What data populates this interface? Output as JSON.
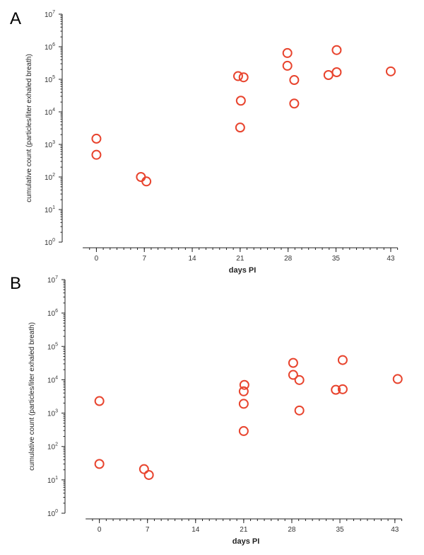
{
  "chart_data": [
    {
      "panel": "A",
      "type": "scatter",
      "xlabel": "days PI",
      "ylabel": "cumulative count (particles/liter exhaled breath)",
      "x_ticks": [
        0,
        7,
        14,
        21,
        28,
        35,
        43
      ],
      "y_scale": "log",
      "ylim": [
        1,
        10000000
      ],
      "y_ticks": [
        "10^0",
        "10^1",
        "10^2",
        "10^3",
        "10^4",
        "10^5",
        "10^6",
        "10^7"
      ],
      "marker": "open-circle",
      "color": "#e8442e",
      "points": [
        {
          "x": 0,
          "y": 1500
        },
        {
          "x": 0,
          "y": 480
        },
        {
          "x": 6.5,
          "y": 100
        },
        {
          "x": 7.3,
          "y": 73
        },
        {
          "x": 20.7,
          "y": 125000
        },
        {
          "x": 21.5,
          "y": 115000
        },
        {
          "x": 21.1,
          "y": 22000
        },
        {
          "x": 21.0,
          "y": 3300
        },
        {
          "x": 27.9,
          "y": 640000
        },
        {
          "x": 27.9,
          "y": 260000
        },
        {
          "x": 28.9,
          "y": 95000
        },
        {
          "x": 28.9,
          "y": 18000
        },
        {
          "x": 33.9,
          "y": 135000
        },
        {
          "x": 35.1,
          "y": 790000
        },
        {
          "x": 35.1,
          "y": 165000
        },
        {
          "x": 43,
          "y": 175000
        }
      ]
    },
    {
      "panel": "B",
      "type": "scatter",
      "xlabel": "days PI",
      "ylabel": "cumulative count (particles/liter exhaled breath)",
      "x_ticks": [
        0,
        7,
        14,
        21,
        28,
        35,
        43
      ],
      "y_scale": "log",
      "ylim": [
        1,
        10000000
      ],
      "y_ticks": [
        "10^0",
        "10^1",
        "10^2",
        "10^3",
        "10^4",
        "10^5",
        "10^6",
        "10^7"
      ],
      "marker": "open-circle",
      "color": "#e8442e",
      "points": [
        {
          "x": 0,
          "y": 2300
        },
        {
          "x": 0,
          "y": 30
        },
        {
          "x": 6.5,
          "y": 21
        },
        {
          "x": 7.2,
          "y": 14
        },
        {
          "x": 21.1,
          "y": 7000
        },
        {
          "x": 21.0,
          "y": 4500
        },
        {
          "x": 21.0,
          "y": 1900
        },
        {
          "x": 21.0,
          "y": 290
        },
        {
          "x": 28.2,
          "y": 32000
        },
        {
          "x": 28.2,
          "y": 14000
        },
        {
          "x": 29.1,
          "y": 9800
        },
        {
          "x": 29.1,
          "y": 1200
        },
        {
          "x": 34.4,
          "y": 5000
        },
        {
          "x": 35.4,
          "y": 39000
        },
        {
          "x": 35.4,
          "y": 5200
        },
        {
          "x": 43.4,
          "y": 10500
        }
      ]
    }
  ]
}
